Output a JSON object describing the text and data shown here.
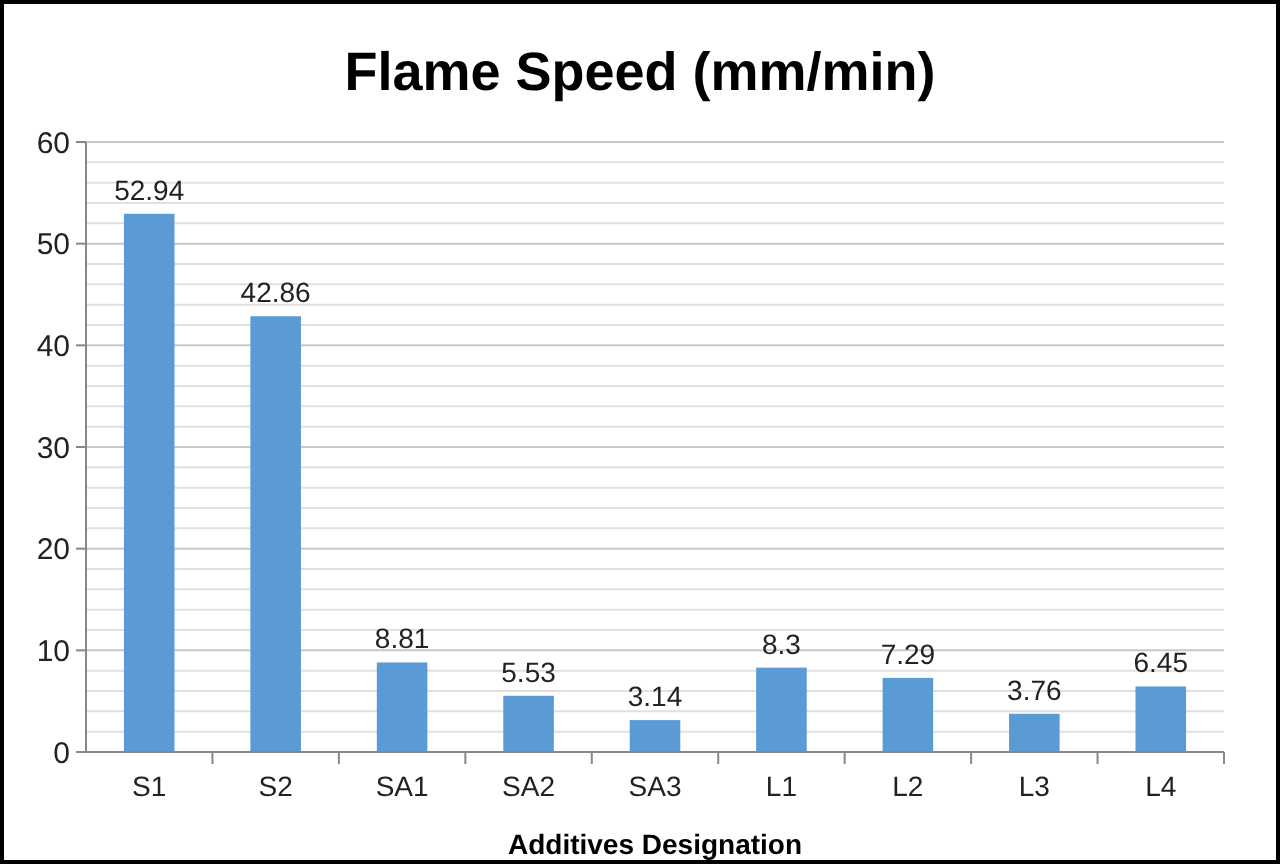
{
  "chart_data": {
    "type": "bar",
    "title": "Flame Speed (mm/min)",
    "xlabel": "Additives Designation",
    "categories": [
      "S1",
      "S2",
      "SA1",
      "SA2",
      "SA3",
      "L1",
      "L2",
      "L3",
      "L4"
    ],
    "values": [
      52.94,
      42.86,
      8.81,
      5.53,
      3.14,
      8.3,
      7.29,
      3.76,
      6.45
    ],
    "color": "#5b9bd5",
    "data_labels": true,
    "grid": "y",
    "ylim": [
      0,
      60
    ],
    "yticks": [
      0,
      {
        "value": 2,
        "label": null
      },
      {
        "value": 4,
        "label": null
      },
      {
        "value": 6,
        "label": null
      },
      {
        "value": 8,
        "label": null
      },
      10,
      {
        "value": 12,
        "label": null
      },
      {
        "value": 14,
        "label": null
      },
      {
        "value": 16,
        "label": null
      },
      {
        "value": 18,
        "label": null
      },
      20,
      {
        "value": 22,
        "label": null
      },
      {
        "value": 24,
        "label": null
      },
      {
        "value": 26,
        "label": null
      },
      {
        "value": 28,
        "label": null
      },
      30,
      {
        "value": 32,
        "label": null
      },
      {
        "value": 34,
        "label": null
      },
      {
        "value": 36,
        "label": null
      },
      {
        "value": 38,
        "label": null
      },
      40,
      {
        "value": 42,
        "label": null
      },
      {
        "value": 44,
        "label": null
      },
      {
        "value": 46,
        "label": null
      },
      {
        "value": 48,
        "label": null
      },
      50,
      {
        "value": 52,
        "label": null
      },
      {
        "value": 54,
        "label": null
      },
      {
        "value": 56,
        "label": null
      },
      {
        "value": 58,
        "label": null
      },
      60
    ]
  }
}
